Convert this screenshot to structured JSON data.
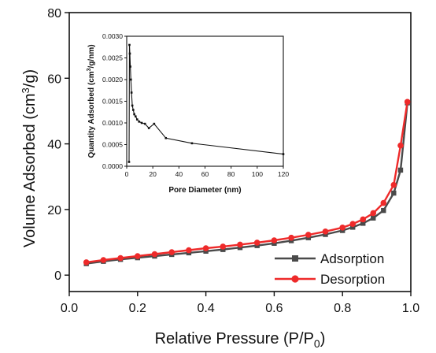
{
  "chart_data": [
    {
      "type": "line",
      "title": "",
      "xlabel": "Relative Pressure (P/P",
      "xlabel_sub": "0",
      "xlabel_end": ")",
      "ylabel": "Volume Adsorbed (cm",
      "ylabel_sup": "3",
      "ylabel_end": "/g)",
      "xlim": [
        0.0,
        1.0
      ],
      "ylim": [
        -5,
        80
      ],
      "x_ticks": [
        0.0,
        0.2,
        0.4,
        0.6,
        0.8,
        1.0
      ],
      "x_tick_labels": [
        "0.0",
        "0.2",
        "0.4",
        "0.6",
        "0.8",
        "1.0"
      ],
      "y_ticks": [
        0,
        20,
        40,
        60,
        80
      ],
      "y_tick_labels": [
        "0",
        "20",
        "40",
        "60",
        "80"
      ],
      "grid": false,
      "legend_position": "bottom-right",
      "series": [
        {
          "name": "Adsorption",
          "color": "#4a4a4a",
          "marker": "square",
          "x": [
            0.05,
            0.1,
            0.15,
            0.2,
            0.25,
            0.3,
            0.35,
            0.4,
            0.45,
            0.5,
            0.55,
            0.6,
            0.65,
            0.7,
            0.75,
            0.8,
            0.83,
            0.86,
            0.89,
            0.92,
            0.95,
            0.97,
            0.99
          ],
          "y": [
            3.5,
            4.2,
            4.8,
            5.3,
            5.8,
            6.3,
            6.8,
            7.3,
            7.8,
            8.4,
            9.0,
            9.7,
            10.5,
            11.4,
            12.4,
            13.6,
            14.6,
            15.8,
            17.4,
            19.7,
            25.0,
            32.0,
            52.5
          ]
        },
        {
          "name": "Desorption",
          "color": "#ee2a2a",
          "marker": "circle",
          "x": [
            0.05,
            0.1,
            0.15,
            0.2,
            0.25,
            0.3,
            0.35,
            0.4,
            0.45,
            0.5,
            0.55,
            0.6,
            0.65,
            0.7,
            0.75,
            0.8,
            0.83,
            0.86,
            0.89,
            0.92,
            0.95,
            0.97,
            0.99
          ],
          "y": [
            3.9,
            4.6,
            5.2,
            5.8,
            6.4,
            7.0,
            7.6,
            8.2,
            8.7,
            9.3,
            9.9,
            10.6,
            11.4,
            12.3,
            13.3,
            14.5,
            15.6,
            17.0,
            18.9,
            22.0,
            27.5,
            39.5,
            52.8
          ]
        }
      ]
    },
    {
      "type": "line",
      "title": "",
      "xlabel": "Pore Diameter (nm)",
      "ylabel": "Quantity Adsorbed (cm",
      "ylabel_sup": "3",
      "ylabel_end": "/g/nm)",
      "xlim": [
        0,
        120
      ],
      "ylim": [
        0,
        0.003
      ],
      "x_ticks": [
        0,
        20,
        40,
        60,
        80,
        100,
        120
      ],
      "x_tick_labels": [
        "0",
        "20",
        "40",
        "60",
        "80",
        "100",
        "120"
      ],
      "y_ticks": [
        0,
        0.0005,
        0.001,
        0.0015,
        0.002,
        0.0025,
        0.003
      ],
      "y_tick_labels": [
        "0.0000",
        "0.0005",
        "0.0010",
        "0.0015",
        "0.0020",
        "0.0025",
        "0.0030"
      ],
      "grid": false,
      "series": [
        {
          "color": "#111111",
          "marker": "square",
          "x": [
            1.8,
            2.1,
            2.4,
            2.8,
            3.2,
            3.7,
            4.3,
            5.0,
            5.8,
            6.8,
            8.0,
            9.5,
            11.5,
            14.0,
            17.0,
            21.0,
            30.0,
            50.0,
            120.0
          ],
          "y": [
            0.0001,
            0.0028,
            0.0026,
            0.0023,
            0.002,
            0.0017,
            0.0014,
            0.0013,
            0.0012,
            0.00115,
            0.00108,
            0.00103,
            0.001,
            0.00098,
            0.00088,
            0.00098,
            0.00065,
            0.00053,
            0.00028
          ]
        }
      ]
    }
  ]
}
